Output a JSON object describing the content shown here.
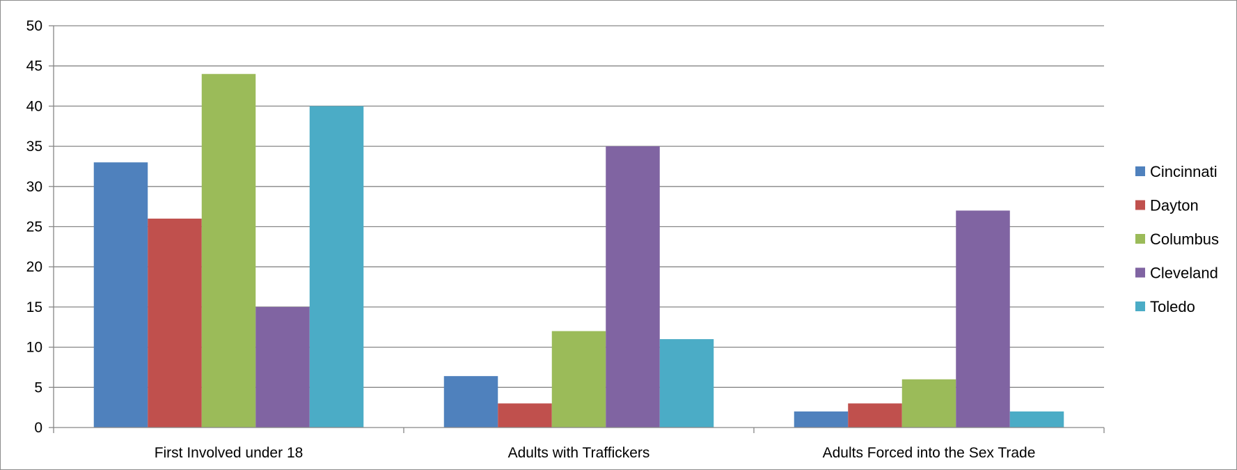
{
  "chart_data": {
    "type": "bar",
    "title": "",
    "xlabel": "",
    "ylabel": "",
    "categories": [
      "First Involved under 18",
      "Adults with Traffickers",
      "Adults Forced into the Sex Trade"
    ],
    "series": [
      {
        "name": "Cincinnati",
        "values": [
          33,
          6.4,
          2
        ],
        "color": "#4F81BD"
      },
      {
        "name": "Dayton",
        "values": [
          26,
          3,
          3
        ],
        "color": "#C0504D"
      },
      {
        "name": "Columbus",
        "values": [
          44,
          12,
          6
        ],
        "color": "#9BBB59"
      },
      {
        "name": "Cleveland",
        "values": [
          15,
          35,
          27
        ],
        "color": "#8064A2"
      },
      {
        "name": "Toledo",
        "values": [
          40,
          11,
          2
        ],
        "color": "#4BACC6"
      }
    ],
    "ylim": [
      0,
      50
    ],
    "yticks": [
      "0",
      "5",
      "10",
      "15",
      "20",
      "25",
      "30",
      "35",
      "40",
      "45",
      "50"
    ],
    "grid": true,
    "legend_position": "right"
  }
}
